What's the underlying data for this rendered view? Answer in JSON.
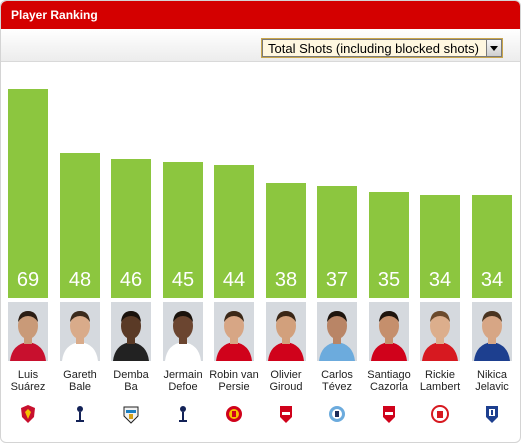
{
  "header": {
    "title": "Player Ranking"
  },
  "metric_select": {
    "selected": "Total Shots (including blocked shots)"
  },
  "colors": {
    "header": "#d40000",
    "bar": "#8cc63f"
  },
  "chart_data": {
    "type": "bar",
    "title": "",
    "ylim": [
      0,
      69
    ],
    "categories": [
      "Luis Suárez",
      "Gareth Bale",
      "Demba Ba",
      "Jermain Defoe",
      "Robin van Persie",
      "Olivier Giroud",
      "Carlos Tévez",
      "Santiago Cazorla",
      "Rickie Lambert",
      "Nikica Jelavic"
    ],
    "values": [
      69,
      48,
      46,
      45,
      44,
      38,
      37,
      35,
      34,
      34
    ]
  },
  "players": [
    {
      "first": "Luis",
      "last": "Suárez",
      "value": "69",
      "club_icon": "liverpool-crest-icon",
      "kit": "#c8102e",
      "skin": "#c99a78",
      "hair": "#2b1d14"
    },
    {
      "first": "Gareth",
      "last": "Bale",
      "value": "48",
      "club_icon": "tottenham-crest-icon",
      "kit": "#ffffff",
      "skin": "#d9ab8a",
      "hair": "#3a2a1c"
    },
    {
      "first": "Demba",
      "last": "Ba",
      "value": "46",
      "club_icon": "newcastle-crest-icon",
      "kit": "#222222",
      "skin": "#5a3a26",
      "hair": "#1a120c"
    },
    {
      "first": "Jermain",
      "last": "Defoe",
      "value": "45",
      "club_icon": "tottenham-crest-icon",
      "kit": "#ffffff",
      "skin": "#6b4530",
      "hair": "#1a120c"
    },
    {
      "first": "Robin van",
      "last": "Persie",
      "value": "44",
      "club_icon": "manchester-united-crest-icon",
      "kit": "#d0021b",
      "skin": "#d7a685",
      "hair": "#3b2818"
    },
    {
      "first": "Olivier",
      "last": "Giroud",
      "value": "38",
      "club_icon": "arsenal-crest-icon",
      "kit": "#d0021b",
      "skin": "#d2a07c",
      "hair": "#3a2616"
    },
    {
      "first": "Carlos",
      "last": "Tévez",
      "value": "37",
      "club_icon": "manchester-city-crest-icon",
      "kit": "#6cabdd",
      "skin": "#b98566",
      "hair": "#1e140d"
    },
    {
      "first": "Santiago",
      "last": "Cazorla",
      "value": "35",
      "club_icon": "arsenal-crest-icon",
      "kit": "#d0021b",
      "skin": "#c58f6c",
      "hair": "#1e140d"
    },
    {
      "first": "Rickie",
      "last": "Lambert",
      "value": "34",
      "club_icon": "southampton-crest-icon",
      "kit": "#d71920",
      "skin": "#dcae8c",
      "hair": "#6b4a2c"
    },
    {
      "first": "Nikica",
      "last": "Jelavic",
      "value": "34",
      "club_icon": "everton-crest-icon",
      "kit": "#1d3f8f",
      "skin": "#d7a685",
      "hair": "#4a3420"
    }
  ]
}
